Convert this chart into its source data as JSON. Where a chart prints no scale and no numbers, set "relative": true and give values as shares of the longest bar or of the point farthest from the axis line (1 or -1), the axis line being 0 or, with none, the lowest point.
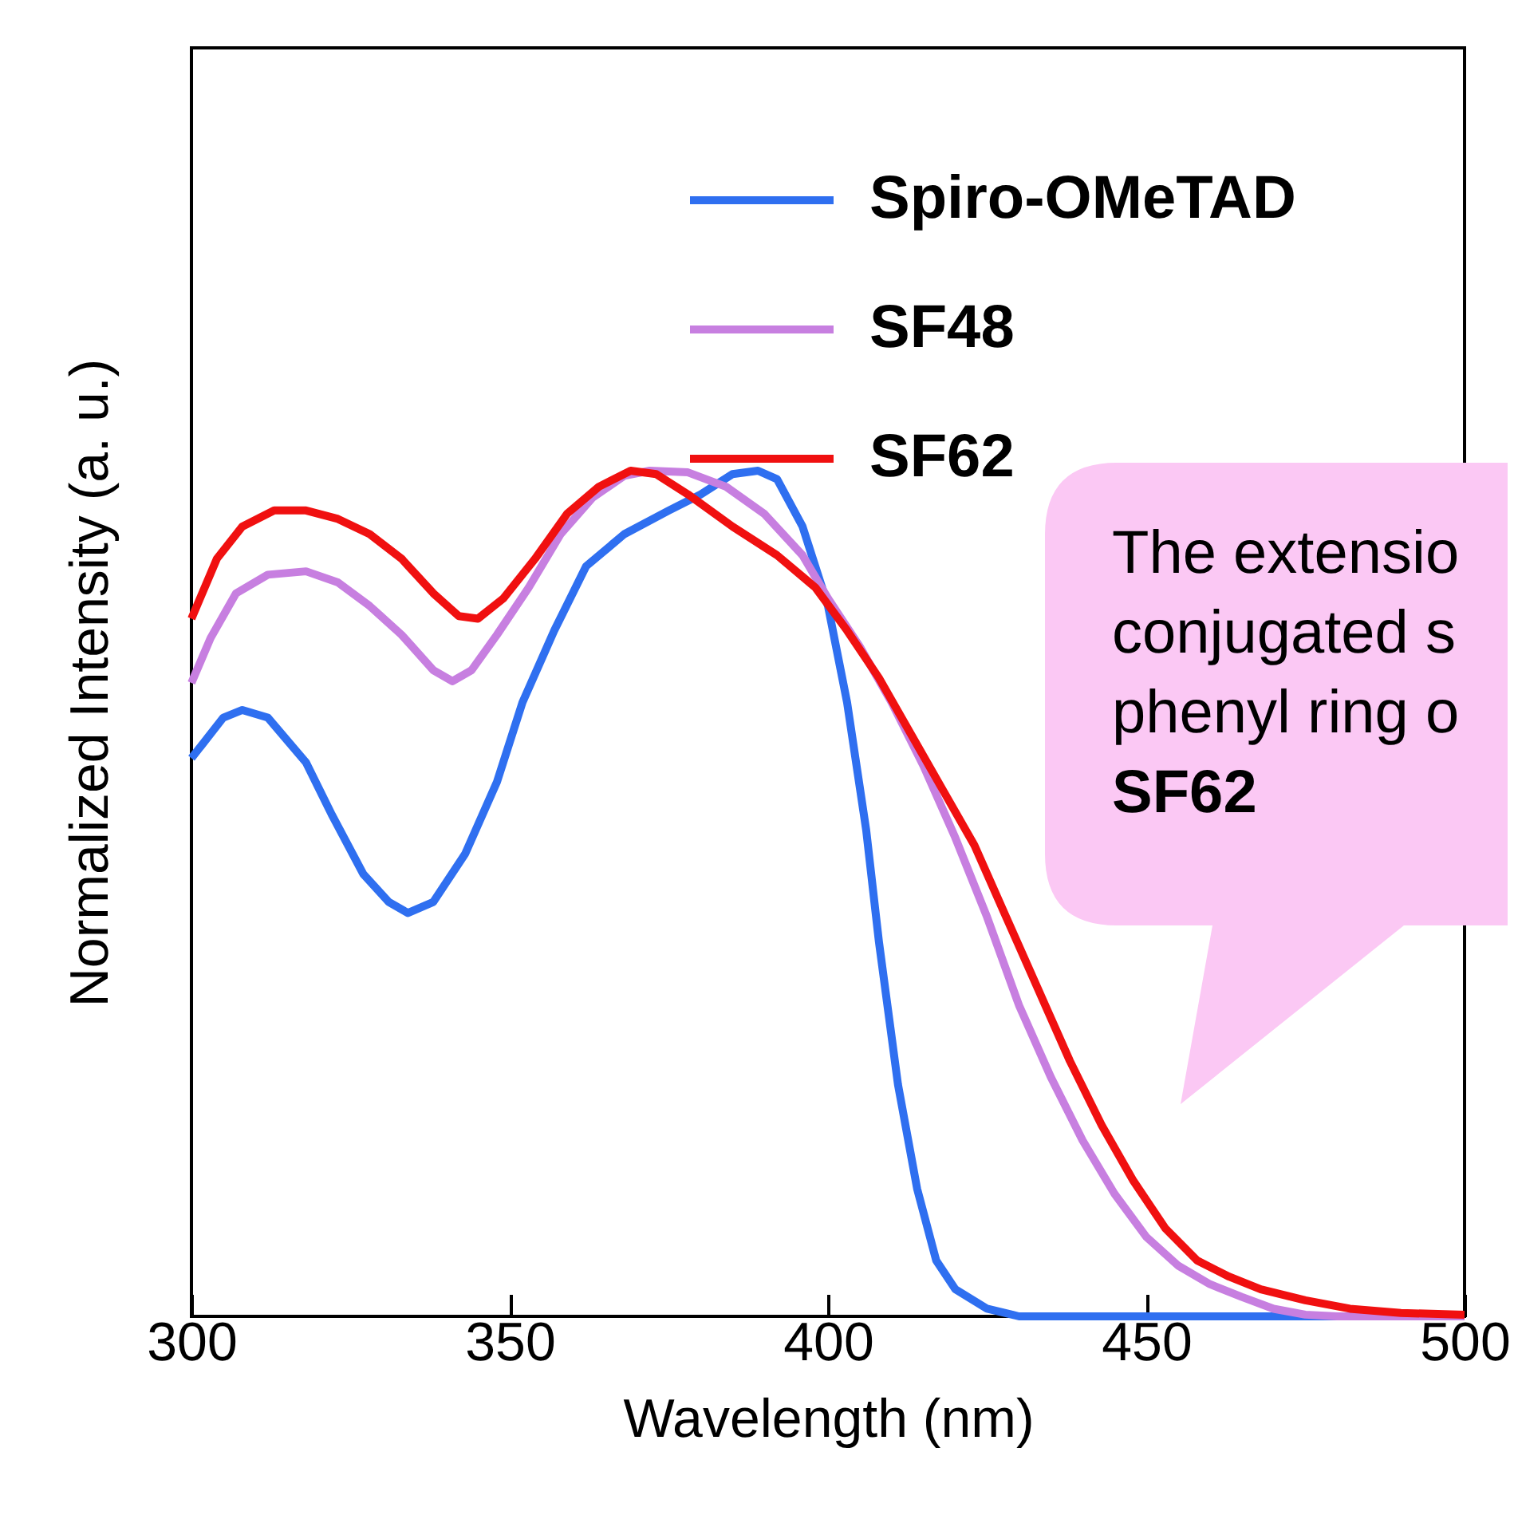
{
  "chart_data": {
    "type": "line",
    "relative": true,
    "xlabel": "Wavelength (nm)",
    "ylabel": "Normalized Intensity (a. u.)",
    "xlim": [
      300,
      500
    ],
    "xticks": [
      300,
      350,
      400,
      450,
      500
    ],
    "legend": "top right",
    "grid": false,
    "annotations": [
      "The extensio\nconjugated s\nphenyl ring o\nSF62"
    ],
    "series": [
      {
        "name": "Spiro-OMeTAD",
        "color": "#2f6ff0",
        "x": [
          300,
          305,
          308,
          312,
          318,
          322,
          327,
          331,
          334,
          338,
          343,
          348,
          352,
          357,
          362,
          368,
          375,
          380,
          385,
          389,
          392,
          396,
          400,
          403,
          406,
          408,
          411,
          414,
          417,
          420,
          425,
          430,
          500
        ],
        "values": [
          0.66,
          0.708,
          0.717,
          0.708,
          0.655,
          0.594,
          0.523,
          0.49,
          0.477,
          0.49,
          0.547,
          0.632,
          0.726,
          0.811,
          0.887,
          0.925,
          0.953,
          0.972,
          0.996,
          1.0,
          0.99,
          0.934,
          0.84,
          0.726,
          0.575,
          0.443,
          0.274,
          0.151,
          0.066,
          0.032,
          0.009,
          0,
          0
        ]
      },
      {
        "name": "SF48",
        "color": "#c77fe0",
        "x": [
          300,
          303,
          307,
          312,
          318,
          323,
          328,
          333,
          338,
          341,
          344,
          348,
          353,
          358,
          363,
          368,
          372,
          378,
          384,
          390,
          396,
          400,
          405,
          410,
          415,
          420,
          425,
          430,
          435,
          440,
          445,
          450,
          455,
          460,
          465,
          470,
          475,
          480,
          500
        ],
        "values": [
          0.749,
          0.802,
          0.855,
          0.877,
          0.881,
          0.868,
          0.84,
          0.806,
          0.764,
          0.751,
          0.764,
          0.806,
          0.862,
          0.925,
          0.968,
          0.994,
          1.0,
          0.998,
          0.981,
          0.949,
          0.9,
          0.849,
          0.792,
          0.726,
          0.651,
          0.566,
          0.472,
          0.368,
          0.283,
          0.208,
          0.145,
          0.094,
          0.06,
          0.038,
          0.023,
          0.009,
          0.002,
          0,
          0
        ]
      },
      {
        "name": "SF62",
        "color": "#f01010",
        "x": [
          300,
          304,
          308,
          313,
          318,
          323,
          328,
          333,
          338,
          342,
          345,
          349,
          354,
          359,
          364,
          369,
          373,
          378,
          385,
          392,
          398,
          403,
          408,
          413,
          418,
          423,
          428,
          433,
          438,
          443,
          448,
          453,
          458,
          463,
          468,
          475,
          482,
          490,
          500
        ],
        "values": [
          0.825,
          0.896,
          0.934,
          0.953,
          0.953,
          0.943,
          0.925,
          0.896,
          0.855,
          0.828,
          0.825,
          0.849,
          0.896,
          0.949,
          0.981,
          1.0,
          0.996,
          0.972,
          0.934,
          0.9,
          0.862,
          0.811,
          0.755,
          0.689,
          0.623,
          0.557,
          0.472,
          0.387,
          0.302,
          0.226,
          0.16,
          0.104,
          0.066,
          0.047,
          0.032,
          0.019,
          0.009,
          0.004,
          0.002
        ]
      }
    ]
  }
}
